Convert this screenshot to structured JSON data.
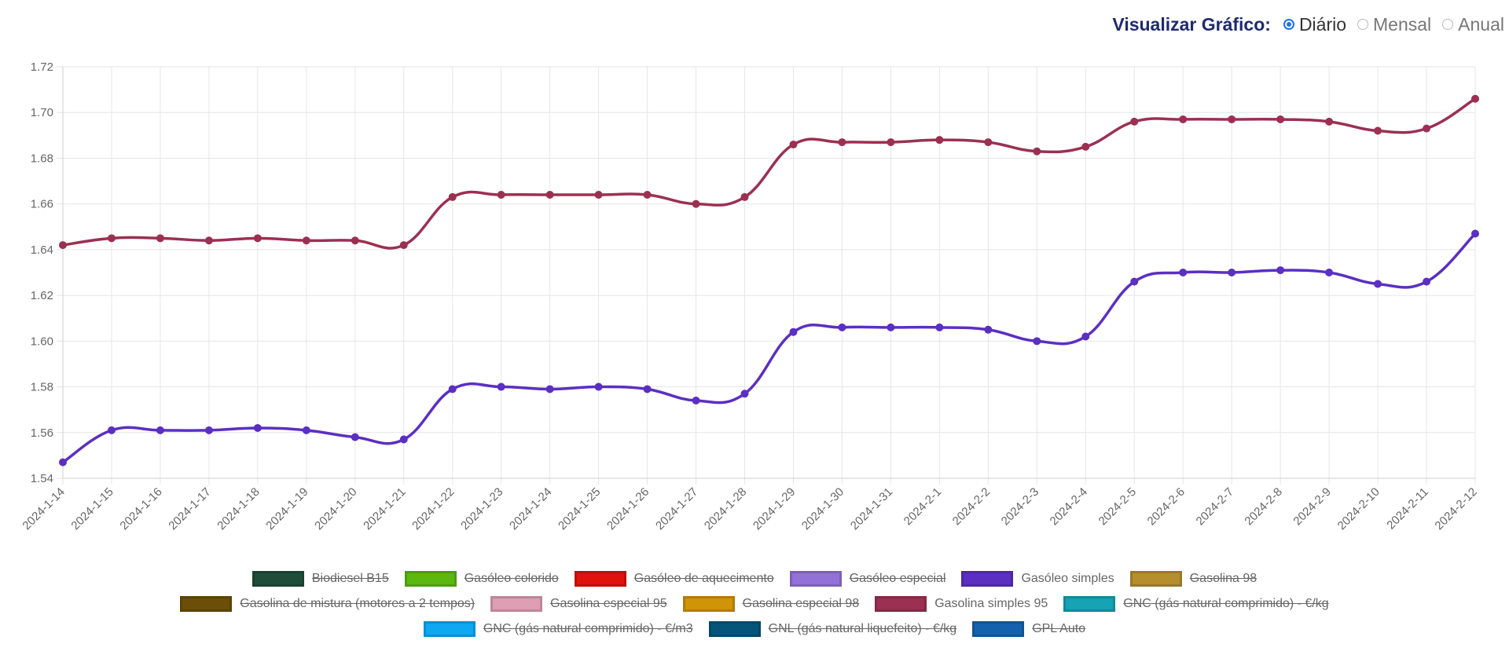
{
  "controls": {
    "label": "Visualizar Gráfico:",
    "options": [
      {
        "label": "Diário",
        "checked": true
      },
      {
        "label": "Mensal",
        "checked": false
      },
      {
        "label": "Anual",
        "checked": false
      }
    ]
  },
  "chart_data": {
    "type": "line",
    "title": "",
    "xlabel": "",
    "ylabel": "",
    "ylim": [
      1.54,
      1.72
    ],
    "yticks": [
      "1.54",
      "1.56",
      "1.58",
      "1.60",
      "1.62",
      "1.64",
      "1.66",
      "1.68",
      "1.70",
      "1.72"
    ],
    "ytick_values": [
      1.54,
      1.56,
      1.58,
      1.6,
      1.62,
      1.64,
      1.66,
      1.68,
      1.7,
      1.72
    ],
    "grid": true,
    "legend_position": "bottom",
    "categories": [
      "2024-1-14",
      "2024-1-15",
      "2024-1-16",
      "2024-1-17",
      "2024-1-18",
      "2024-1-19",
      "2024-1-20",
      "2024-1-21",
      "2024-1-22",
      "2024-1-23",
      "2024-1-24",
      "2024-1-25",
      "2024-1-26",
      "2024-1-27",
      "2024-1-28",
      "2024-1-29",
      "2024-1-30",
      "2024-1-31",
      "2024-2-1",
      "2024-2-2",
      "2024-2-3",
      "2024-2-4",
      "2024-2-5",
      "2024-2-6",
      "2024-2-7",
      "2024-2-8",
      "2024-2-9",
      "2024-2-10",
      "2024-2-11",
      "2024-2-12"
    ],
    "series": [
      {
        "name": "Gasolina simples 95",
        "color": "#9b3052",
        "values": [
          1.642,
          1.645,
          1.645,
          1.644,
          1.645,
          1.644,
          1.644,
          1.642,
          1.663,
          1.664,
          1.664,
          1.664,
          1.664,
          1.66,
          1.663,
          1.686,
          1.687,
          1.687,
          1.688,
          1.687,
          1.683,
          1.685,
          1.696,
          1.697,
          1.697,
          1.697,
          1.696,
          1.692,
          1.693,
          1.706
        ]
      },
      {
        "name": "Gasóleo simples",
        "color": "#5b2fc2",
        "values": [
          1.547,
          1.561,
          1.561,
          1.561,
          1.562,
          1.561,
          1.558,
          1.557,
          1.579,
          1.58,
          1.579,
          1.58,
          1.579,
          1.574,
          1.577,
          1.604,
          1.606,
          1.606,
          1.606,
          1.605,
          1.6,
          1.602,
          1.626,
          1.63,
          1.63,
          1.631,
          1.63,
          1.625,
          1.626,
          1.647
        ]
      }
    ],
    "legend": [
      {
        "label": "Biodiesel B15",
        "color": "#1f4d3a",
        "hidden": true
      },
      {
        "label": "Gasóleo colorido",
        "color": "#5cb80f",
        "hidden": true
      },
      {
        "label": "Gasóleo de aquecimento",
        "color": "#e0120c",
        "hidden": true
      },
      {
        "label": "Gasóleo especial",
        "color": "#9271d8",
        "hidden": true
      },
      {
        "label": "Gasóleo simples",
        "color": "#5b2fc2",
        "hidden": false
      },
      {
        "label": "Gasolina 98",
        "color": "#b58f2e",
        "hidden": true
      },
      {
        "label": "Gasolina de mistura (motores a 2 tempos)",
        "color": "#6b4e08",
        "hidden": true
      },
      {
        "label": "Gasolina especial 95",
        "color": "#de9eb4",
        "hidden": true
      },
      {
        "label": "Gasolina especial 98",
        "color": "#cf9408",
        "hidden": true
      },
      {
        "label": "Gasolina simples 95",
        "color": "#9b3052",
        "hidden": false
      },
      {
        "label": "GNC (gás natural comprimido) - €/kg",
        "color": "#16a3b4",
        "hidden": true
      },
      {
        "label": "GNC (gás natural comprimido) - €/m3",
        "color": "#0ea8f2",
        "hidden": true
      },
      {
        "label": "GNL (gás natural liquefeito) - €/kg",
        "color": "#05557a",
        "hidden": true
      },
      {
        "label": "GPL Auto",
        "color": "#1462ad",
        "hidden": true
      }
    ]
  }
}
